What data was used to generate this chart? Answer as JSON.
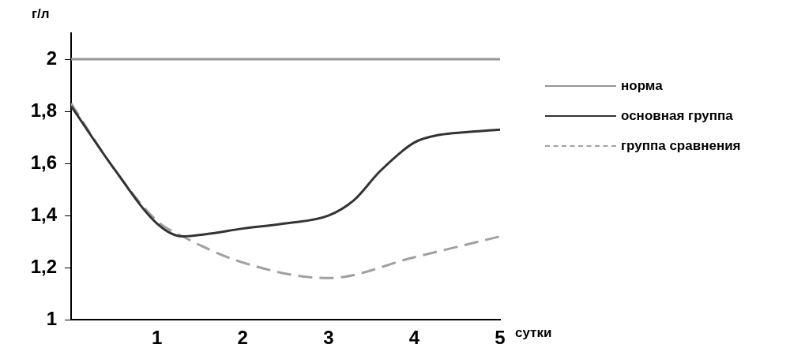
{
  "chart_data": {
    "type": "line",
    "xlabel": "сутки",
    "ylabel": "г/л",
    "xlim": [
      0,
      5
    ],
    "xticks": [
      1,
      2,
      3,
      4,
      5
    ],
    "ylim": [
      1,
      2.1
    ],
    "yticks": [
      1,
      {
        "value": 1.2,
        "label": "1,2"
      },
      {
        "value": 1.4,
        "label": "1,4"
      },
      {
        "value": 1.6,
        "label": "1,6"
      },
      {
        "value": 1.8,
        "label": "1,8"
      },
      2
    ],
    "grid": false,
    "legend": "right",
    "marker": "none",
    "series": [
      {
        "name": "норма",
        "color": "#969696",
        "x": [
          0,
          5
        ],
        "values": [
          2,
          2
        ],
        "line_style": "solid"
      },
      {
        "name": "основная группа",
        "color": "#333333",
        "x": [
          0,
          0.5,
          1,
          1.3,
          1.6,
          2,
          2.5,
          3,
          3.3,
          3.6,
          4,
          4.3,
          4.6,
          5
        ],
        "values": [
          1.82,
          1.58,
          1.37,
          1.32,
          1.33,
          1.35,
          1.37,
          1.4,
          1.46,
          1.57,
          1.68,
          1.71,
          1.72,
          1.73
        ],
        "line_style": "solid"
      },
      {
        "name": "группа сравнения",
        "color": "#a0a0a0",
        "x": [
          0,
          0.5,
          1,
          1.3,
          2,
          3,
          4,
          5
        ],
        "values": [
          1.83,
          1.58,
          1.38,
          1.32,
          1.22,
          1.16,
          1.24,
          1.32
        ],
        "line_style": "dashed"
      }
    ]
  }
}
